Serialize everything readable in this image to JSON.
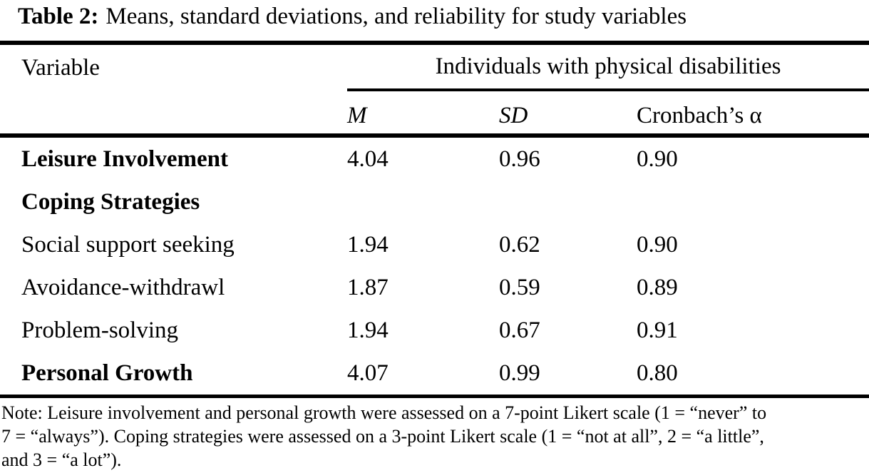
{
  "title": {
    "label": "Table 2:",
    "text": "Means, standard deviations, and reliability for study variables"
  },
  "table": {
    "variable_header": "Variable",
    "spanner": "Individuals with physical disabilities",
    "columns": [
      "M",
      "SD",
      "Cronbach’s α"
    ],
    "rows": [
      {
        "variable": "Leisure Involvement",
        "m": "4.04",
        "sd": "0.96",
        "alpha": "0.90"
      },
      {
        "variable": "Coping Strategies",
        "m": "",
        "sd": "",
        "alpha": ""
      },
      {
        "variable": "Social support seeking",
        "m": "1.94",
        "sd": "0.62",
        "alpha": "0.90"
      },
      {
        "variable": "Avoidance-withdrawl",
        "m": "1.87",
        "sd": "0.59",
        "alpha": "0.89"
      },
      {
        "variable": "Problem-solving",
        "m": "1.94",
        "sd": "0.67",
        "alpha": "0.91"
      },
      {
        "variable": "Personal Growth",
        "m": "4.07",
        "sd": "0.99",
        "alpha": "0.80"
      }
    ]
  },
  "note": {
    "lines": [
      "Note: Leisure involvement and personal growth were assessed on a 7-point Likert scale (1 = “never” to",
      "7 = “always”). Coping strategies were assessed on a 3-point Likert scale (1 = “not at all”, 2 = “a little”,",
      "and 3 = “a lot”)."
    ]
  },
  "colors": {
    "text": "#000000",
    "background": "#ffffff",
    "rule": "#000000"
  }
}
